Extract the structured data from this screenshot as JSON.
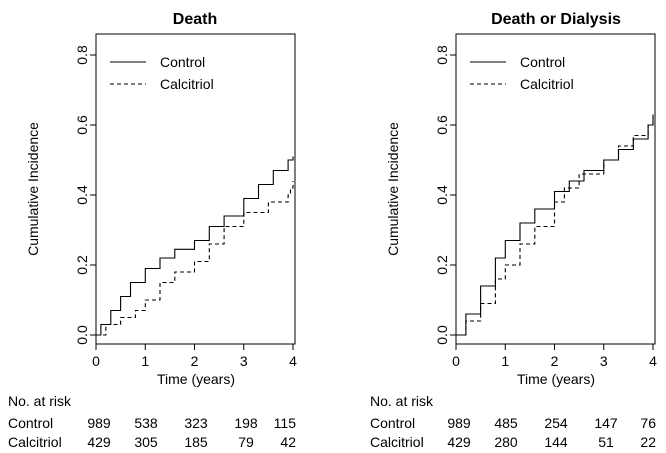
{
  "chart_data": [
    {
      "type": "line",
      "title": "Death",
      "xlabel": "Time (years)",
      "ylabel": "Cumulative Incidence",
      "xlim": [
        0,
        4
      ],
      "ylim": [
        0,
        0.8
      ],
      "x_ticks": [
        "0",
        "1",
        "2",
        "3",
        "4"
      ],
      "y_ticks": [
        "0.0",
        "0.2",
        "0.4",
        "0.6",
        "0.8"
      ],
      "legend_position": "top-left",
      "series": [
        {
          "name": "Control",
          "style": "solid",
          "points": [
            [
              0,
              0
            ],
            [
              0.1,
              0.03
            ],
            [
              0.3,
              0.07
            ],
            [
              0.5,
              0.11
            ],
            [
              0.7,
              0.15
            ],
            [
              1.0,
              0.19
            ],
            [
              1.3,
              0.22
            ],
            [
              1.6,
              0.245
            ],
            [
              2.0,
              0.27
            ],
            [
              2.3,
              0.31
            ],
            [
              2.6,
              0.34
            ],
            [
              3.0,
              0.39
            ],
            [
              3.3,
              0.43
            ],
            [
              3.6,
              0.47
            ],
            [
              3.9,
              0.5
            ],
            [
              4.0,
              0.51
            ]
          ]
        },
        {
          "name": "Calcitriol",
          "style": "dashed",
          "points": [
            [
              0,
              0
            ],
            [
              0.2,
              0.03
            ],
            [
              0.5,
              0.05
            ],
            [
              0.8,
              0.07
            ],
            [
              1.0,
              0.1
            ],
            [
              1.3,
              0.15
            ],
            [
              1.6,
              0.18
            ],
            [
              2.0,
              0.21
            ],
            [
              2.3,
              0.26
            ],
            [
              2.6,
              0.31
            ],
            [
              3.0,
              0.35
            ],
            [
              3.5,
              0.38
            ],
            [
              3.9,
              0.4
            ],
            [
              3.95,
              0.42
            ],
            [
              4.0,
              0.44
            ]
          ]
        }
      ],
      "at_risk": {
        "heading": "No. at risk",
        "rows": [
          {
            "label": "Control",
            "values": [
              "989",
              "538",
              "323",
              "198",
              "115"
            ]
          },
          {
            "label": "Calcitriol",
            "values": [
              "429",
              "305",
              "185",
              "79",
              "42"
            ]
          }
        ]
      }
    },
    {
      "type": "line",
      "title": "Death or Dialysis",
      "xlabel": "Time (years)",
      "ylabel": "Cumulative Incidence",
      "xlim": [
        0,
        4
      ],
      "ylim": [
        0,
        0.8
      ],
      "x_ticks": [
        "0",
        "1",
        "2",
        "3",
        "4"
      ],
      "y_ticks": [
        "0.0",
        "0.2",
        "0.4",
        "0.6",
        "0.8"
      ],
      "legend_position": "top-left",
      "series": [
        {
          "name": "Control",
          "style": "solid",
          "points": [
            [
              0,
              0
            ],
            [
              0.2,
              0.06
            ],
            [
              0.5,
              0.14
            ],
            [
              0.8,
              0.22
            ],
            [
              1.0,
              0.27
            ],
            [
              1.3,
              0.32
            ],
            [
              1.6,
              0.36
            ],
            [
              2.0,
              0.41
            ],
            [
              2.3,
              0.44
            ],
            [
              2.6,
              0.47
            ],
            [
              3.0,
              0.5
            ],
            [
              3.3,
              0.53
            ],
            [
              3.6,
              0.56
            ],
            [
              3.9,
              0.6
            ],
            [
              4.0,
              0.63
            ]
          ]
        },
        {
          "name": "Calcitriol",
          "style": "dashed",
          "points": [
            [
              0,
              0
            ],
            [
              0.2,
              0.04
            ],
            [
              0.5,
              0.09
            ],
            [
              0.8,
              0.16
            ],
            [
              1.0,
              0.2
            ],
            [
              1.3,
              0.26
            ],
            [
              1.6,
              0.31
            ],
            [
              2.0,
              0.38
            ],
            [
              2.2,
              0.42
            ],
            [
              2.5,
              0.46
            ],
            [
              3.0,
              0.5
            ],
            [
              3.3,
              0.54
            ],
            [
              3.6,
              0.57
            ],
            [
              3.9,
              0.6
            ],
            [
              4.0,
              0.62
            ]
          ]
        }
      ],
      "at_risk": {
        "heading": "No. at risk",
        "rows": [
          {
            "label": "Control",
            "values": [
              "989",
              "485",
              "254",
              "147",
              "76"
            ]
          },
          {
            "label": "Calcitriol",
            "values": [
              "429",
              "280",
              "144",
              "51",
              "22"
            ]
          }
        ]
      }
    }
  ]
}
